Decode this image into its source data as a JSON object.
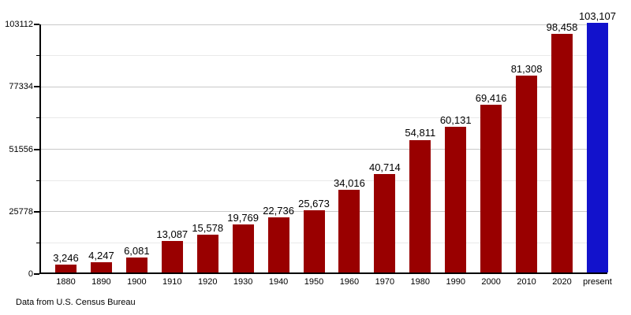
{
  "chart_data": {
    "type": "bar",
    "title": "",
    "xlabel": "",
    "ylabel": "",
    "legend": "none",
    "grid": "horizontal, major and minor lines",
    "categories": [
      "1880",
      "1890",
      "1900",
      "1910",
      "1920",
      "1930",
      "1940",
      "1950",
      "1960",
      "1970",
      "1980",
      "1990",
      "2000",
      "2010",
      "2020",
      "present"
    ],
    "values": [
      3246,
      4247,
      6081,
      13087,
      15578,
      19769,
      22736,
      25673,
      34016,
      40714,
      54811,
      60131,
      69416,
      81308,
      98458,
      103107
    ],
    "value_labels": [
      "3,246",
      "4,247",
      "6,081",
      "13,087",
      "15,578",
      "19,769",
      "22,736",
      "25,673",
      "34,016",
      "40,714",
      "54,811",
      "60,131",
      "69,416",
      "81,308",
      "98,458",
      "103,107"
    ],
    "ylim": [
      0,
      103112
    ],
    "y_major_ticks": [
      0,
      25778,
      51556,
      77334,
      103112
    ],
    "y_major_tick_labels": [
      "0",
      "25778",
      "51556",
      "77334",
      "103112"
    ],
    "y_minor_ticks": [
      12889,
      38667,
      64445,
      90223
    ],
    "bar_color": "#990000",
    "highlight_color": "#1212cc",
    "highlight_index": 15,
    "source_note": "Data from U.S. Census Bureau"
  },
  "colors": {
    "axis": "#000000",
    "gridline_major": "#c9c9c9",
    "gridline_minor": "#e9e9e9",
    "text": "#000000",
    "background": "#ffffff"
  }
}
